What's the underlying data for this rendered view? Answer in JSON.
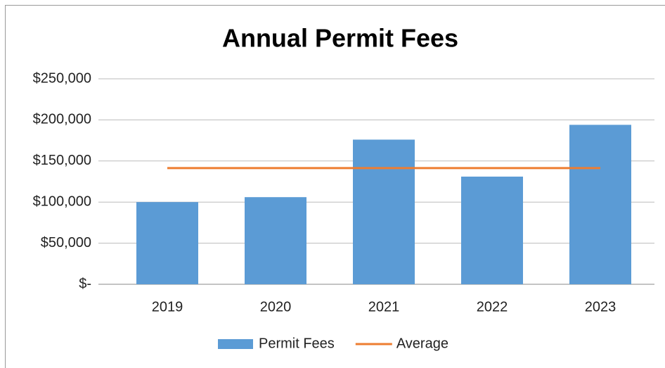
{
  "chart_data": {
    "type": "bar",
    "title": "Annual Permit Fees",
    "categories": [
      "2019",
      "2020",
      "2021",
      "2022",
      "2023"
    ],
    "series": [
      {
        "name": "Permit Fees",
        "type": "bar",
        "color": "#5b9bd5",
        "values": [
          100000,
          106000,
          176000,
          131000,
          194000
        ]
      },
      {
        "name": "Average",
        "type": "line",
        "color": "#ed7d31",
        "values": [
          141400,
          141400,
          141400,
          141400,
          141400
        ]
      }
    ],
    "ylim": [
      0,
      250000
    ],
    "yticks": [
      {
        "value": 0,
        "label": "$-"
      },
      {
        "value": 50000,
        "label": "$50,000"
      },
      {
        "value": 100000,
        "label": "$100,000"
      },
      {
        "value": 150000,
        "label": "$150,000"
      },
      {
        "value": 200000,
        "label": "$200,000"
      },
      {
        "value": 250000,
        "label": "$250,000"
      }
    ],
    "grid": true,
    "legend": "bottom"
  }
}
